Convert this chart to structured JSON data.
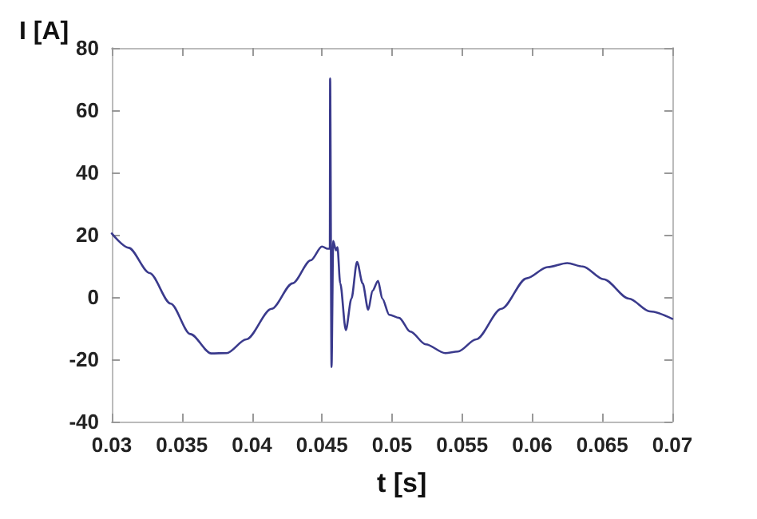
{
  "chart_data": {
    "type": "line",
    "xlabel": "t [s]",
    "ylabel": "I [A]",
    "xlim": [
      0.03,
      0.07
    ],
    "xticks": [
      0.03,
      0.035,
      0.04,
      0.045,
      0.05,
      0.055,
      0.06,
      0.065,
      0.07
    ],
    "ylim": [
      -40,
      80
    ],
    "yticks": [
      -40,
      -20,
      0,
      20,
      40,
      60,
      80
    ],
    "grid": false,
    "marker": "none",
    "line_style": "solid",
    "series": [
      {
        "color": "#3a3a8c",
        "x": [
          0.03,
          0.0312,
          0.0327,
          0.0342,
          0.0356,
          0.0371,
          0.0382,
          0.0396,
          0.0414,
          0.0429,
          0.0442,
          0.045,
          0.0454,
          0.04556,
          0.04558,
          0.04568,
          0.0458,
          0.046,
          0.0461,
          0.0463,
          0.0467,
          0.0471,
          0.0475,
          0.0479,
          0.0483,
          0.0486,
          0.049,
          0.0493,
          0.0498,
          0.0505,
          0.0513,
          0.0524,
          0.0538,
          0.0547,
          0.056,
          0.0578,
          0.0596,
          0.0611,
          0.0625,
          0.0636,
          0.0651,
          0.0669,
          0.0684,
          0.07
        ],
        "values": [
          20.4,
          15.8,
          7.7,
          -2.1,
          -11.9,
          -18.1,
          -18,
          -13.6,
          -3.8,
          4.4,
          11.8,
          16.2,
          15.5,
          15.5,
          70.2,
          -22.5,
          18,
          15,
          16,
          4.4,
          -10.6,
          -0.5,
          11.3,
          4.4,
          -4.1,
          2,
          5.2,
          -0.5,
          -5.7,
          -6.7,
          -11.1,
          -15.2,
          -18,
          -17.5,
          -13.6,
          -3.8,
          6,
          9.6,
          10.9,
          9.8,
          5.7,
          -0.5,
          -4.6,
          -7
        ]
      }
    ]
  }
}
